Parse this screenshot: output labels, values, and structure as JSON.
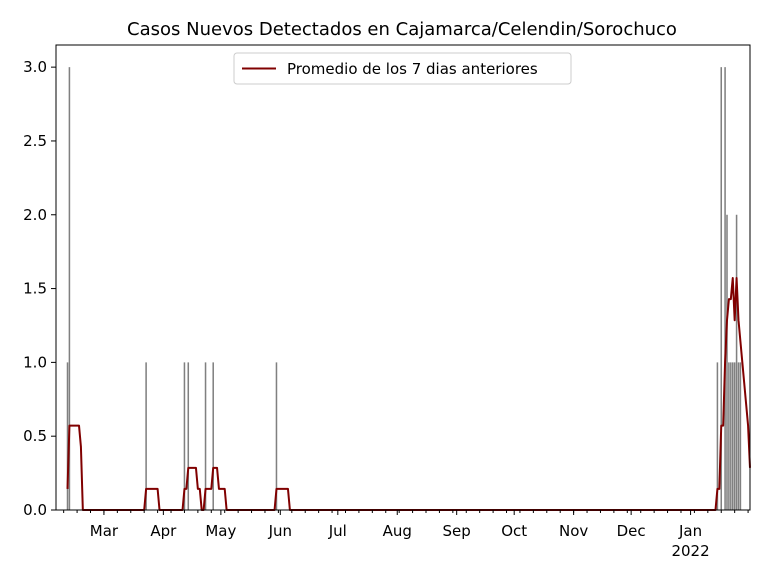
{
  "chart_data": {
    "type": "bar",
    "title": "Casos Nuevos Detectados en Cajamarca/Celendin/Sorochuco",
    "xlabel": "",
    "ylabel": "",
    "ylim": [
      0,
      3.15
    ],
    "yticks": [
      {
        "value": 0.0,
        "label": "0.0"
      },
      {
        "value": 0.5,
        "label": "0.5"
      },
      {
        "value": 1.0,
        "label": "1.0"
      },
      {
        "value": 1.5,
        "label": "1.5"
      },
      {
        "value": 2.0,
        "label": "2.0"
      },
      {
        "value": 2.5,
        "label": "2.5"
      },
      {
        "value": 3.0,
        "label": "3.0"
      }
    ],
    "xlim": [
      "2021-02-04",
      "2022-02-01"
    ],
    "month_ticks": [
      {
        "date": "2021-03-01",
        "label": "Mar"
      },
      {
        "date": "2021-04-01",
        "label": "Apr"
      },
      {
        "date": "2021-05-01",
        "label": "May"
      },
      {
        "date": "2021-06-01",
        "label": "Jun"
      },
      {
        "date": "2021-07-01",
        "label": "Jul"
      },
      {
        "date": "2021-08-01",
        "label": "Aug"
      },
      {
        "date": "2021-09-01",
        "label": "Sep"
      },
      {
        "date": "2021-10-01",
        "label": "Oct"
      },
      {
        "date": "2021-11-01",
        "label": "Nov"
      },
      {
        "date": "2021-12-01",
        "label": "Dec"
      },
      {
        "date": "2022-01-01",
        "label": "Jan"
      }
    ],
    "year_label": {
      "date": "2022-01-01",
      "label": "2022"
    },
    "bar_color": "#808080",
    "line_color": "#800000",
    "legend": {
      "placement": "top-center",
      "entries": [
        "Promedio de los 7 dias anteriores"
      ]
    },
    "grid": false,
    "daily_cases": [
      {
        "date": "2021-02-10",
        "value": 1
      },
      {
        "date": "2021-02-11",
        "value": 3
      },
      {
        "date": "2021-03-23",
        "value": 1
      },
      {
        "date": "2021-04-12",
        "value": 1
      },
      {
        "date": "2021-04-14",
        "value": 1
      },
      {
        "date": "2021-04-23",
        "value": 1
      },
      {
        "date": "2021-04-27",
        "value": 1
      },
      {
        "date": "2021-05-30",
        "value": 1
      },
      {
        "date": "2022-01-15",
        "value": 1
      },
      {
        "date": "2022-01-17",
        "value": 3
      },
      {
        "date": "2022-01-19",
        "value": 3
      },
      {
        "date": "2022-01-20",
        "value": 2
      },
      {
        "date": "2022-01-21",
        "value": 1
      },
      {
        "date": "2022-01-22",
        "value": 1
      },
      {
        "date": "2022-01-23",
        "value": 1
      },
      {
        "date": "2022-01-24",
        "value": 1
      },
      {
        "date": "2022-01-25",
        "value": 2
      },
      {
        "date": "2022-01-26",
        "value": 1
      },
      {
        "date": "2022-01-27",
        "value": 1
      }
    ]
  }
}
